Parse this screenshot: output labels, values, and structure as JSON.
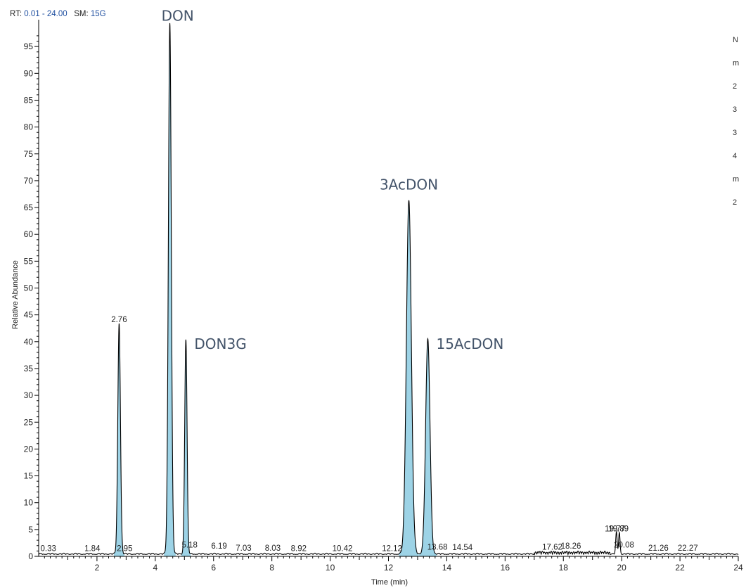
{
  "header": {
    "rt_label": "RT:",
    "rt_value": "0.01 - 24.00",
    "sm_label": "SM:",
    "sm_value": "15G"
  },
  "side_info": [
    "N",
    "m",
    "2",
    "3",
    "3",
    "4",
    "m",
    "2"
  ],
  "chart_data": {
    "type": "line",
    "title": "",
    "xlabel": "Time (min)",
    "ylabel": "Relative Abundance",
    "xlim": [
      0,
      24
    ],
    "ylim": [
      0,
      100
    ],
    "x_ticks": [
      2,
      4,
      6,
      8,
      10,
      12,
      14,
      16,
      18,
      20,
      22,
      24
    ],
    "y_ticks": [
      0,
      5,
      10,
      15,
      20,
      25,
      30,
      35,
      40,
      45,
      50,
      55,
      60,
      65,
      70,
      75,
      80,
      85,
      90,
      95
    ],
    "grid": false,
    "line_color": "#000000",
    "fill_color": "#9dd3e6",
    "filled_peaks": [
      {
        "rt": 2.76,
        "height": 43,
        "width": 0.045
      },
      {
        "rt": 4.5,
        "height": 99,
        "width": 0.05
      },
      {
        "rt": 5.05,
        "height": 40,
        "width": 0.04
      },
      {
        "rt": 12.7,
        "height": 66,
        "width": 0.085
      },
      {
        "rt": 13.35,
        "height": 40,
        "width": 0.075
      }
    ],
    "minor_peaks": [
      {
        "rt": 19.82,
        "height": 4,
        "width": 0.025
      },
      {
        "rt": 19.92,
        "height": 4,
        "width": 0.025
      }
    ],
    "peak_labels": [
      {
        "rt": 0.33,
        "y": 0.3,
        "label": "0.33"
      },
      {
        "rt": 1.84,
        "y": 0.3,
        "label": "1.84"
      },
      {
        "rt": 2.76,
        "y": 43,
        "label": "2.76"
      },
      {
        "rt": 2.95,
        "y": 0.3,
        "label": "2.95"
      },
      {
        "rt": 5.18,
        "y": 1,
        "label": "5.18"
      },
      {
        "rt": 6.19,
        "y": 0.8,
        "label": "6.19"
      },
      {
        "rt": 7.03,
        "y": 0.4,
        "label": "7.03"
      },
      {
        "rt": 8.03,
        "y": 0.4,
        "label": "8.03"
      },
      {
        "rt": 8.92,
        "y": 0.3,
        "label": "8.92"
      },
      {
        "rt": 10.42,
        "y": 0.3,
        "label": "10.42"
      },
      {
        "rt": 12.12,
        "y": 0.3,
        "label": "12.12"
      },
      {
        "rt": 13.68,
        "y": 0.6,
        "label": "13.68"
      },
      {
        "rt": 14.54,
        "y": 0.5,
        "label": "14.54"
      },
      {
        "rt": 17.62,
        "y": 0.6,
        "label": "17.62"
      },
      {
        "rt": 18.26,
        "y": 0.8,
        "label": "18.26"
      },
      {
        "rt": 19.77,
        "y": 4,
        "label": "19.77"
      },
      {
        "rt": 19.89,
        "y": 4,
        "label": "19.89"
      },
      {
        "rt": 20.08,
        "y": 1,
        "label": "20.08"
      },
      {
        "rt": 21.26,
        "y": 0.4,
        "label": "21.26"
      },
      {
        "rt": 22.27,
        "y": 0.4,
        "label": "22.27"
      }
    ],
    "compound_labels": [
      {
        "rt": 4.5,
        "y": 99,
        "label": "DON"
      },
      {
        "rt": 5.05,
        "y": 40,
        "label": "DON3G"
      },
      {
        "rt": 12.7,
        "y": 66,
        "label": "3AcDON"
      },
      {
        "rt": 13.35,
        "y": 40,
        "label": "15AcDON"
      }
    ]
  }
}
